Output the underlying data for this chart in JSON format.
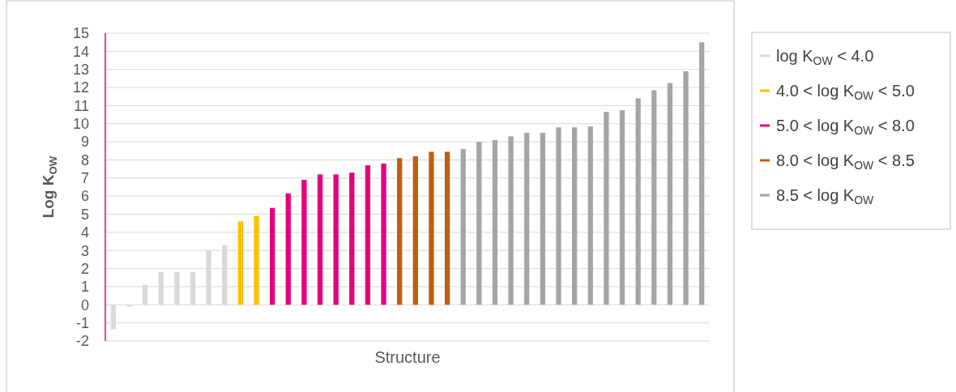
{
  "chart_data": {
    "type": "bar",
    "xlabel": "Structure",
    "ylabel": "Log K$_{OW}$",
    "categories": [
      null,
      null,
      null,
      null,
      null,
      null,
      null,
      null,
      null,
      null,
      null,
      null,
      null,
      null,
      null,
      null,
      null,
      null,
      null,
      null,
      null,
      null,
      null,
      null,
      null,
      null,
      null,
      null,
      null,
      null,
      null,
      null,
      null,
      null,
      null,
      null,
      null,
      null
    ],
    "series": [
      {
        "name": "log K$_{OW}$ < 4.0",
        "color": "#d9d9d9",
        "values": [
          -1.35,
          -0.1,
          1.1,
          1.8,
          1.8,
          1.8,
          3.0,
          3.3,
          null,
          null,
          null,
          null,
          null,
          null,
          null,
          null,
          null,
          null,
          null,
          null,
          null,
          null,
          null,
          null,
          null,
          null,
          null,
          null,
          null,
          null,
          null,
          null,
          null,
          null,
          null,
          null,
          null,
          null
        ]
      },
      {
        "name": "4.0 < log K$_{OW}$ < 5.0",
        "color": "#ffc000",
        "values": [
          null,
          null,
          null,
          null,
          null,
          null,
          null,
          null,
          4.6,
          4.9,
          null,
          null,
          null,
          null,
          null,
          null,
          null,
          null,
          null,
          null,
          null,
          null,
          null,
          null,
          null,
          null,
          null,
          null,
          null,
          null,
          null,
          null,
          null,
          null,
          null,
          null,
          null,
          null
        ]
      },
      {
        "name": "5.0 < log K$_{OW}$ < 8.0",
        "color": "#e6007e",
        "values": [
          null,
          null,
          null,
          null,
          null,
          null,
          null,
          null,
          null,
          null,
          5.35,
          6.15,
          6.9,
          7.2,
          7.2,
          7.3,
          7.7,
          7.8,
          null,
          null,
          null,
          null,
          null,
          null,
          null,
          null,
          null,
          null,
          null,
          null,
          null,
          null,
          null,
          null,
          null,
          null,
          null,
          null
        ]
      },
      {
        "name": "8.0 < log K$_{OW}$ < 8.5",
        "color": "#c55a11",
        "values": [
          null,
          null,
          null,
          null,
          null,
          null,
          null,
          null,
          null,
          null,
          null,
          null,
          null,
          null,
          null,
          null,
          null,
          null,
          8.1,
          8.2,
          8.45,
          8.45,
          null,
          null,
          null,
          null,
          null,
          null,
          null,
          null,
          null,
          null,
          null,
          null,
          null,
          null,
          null,
          null
        ]
      },
      {
        "name": "8.5 < log K$_{OW}$",
        "color": "#a5a5a5",
        "values": [
          null,
          null,
          null,
          null,
          null,
          null,
          null,
          null,
          null,
          null,
          null,
          null,
          null,
          null,
          null,
          null,
          null,
          null,
          null,
          null,
          null,
          null,
          8.6,
          9.0,
          9.1,
          9.3,
          9.5,
          9.5,
          9.8,
          9.8,
          9.85,
          10.65,
          10.75,
          11.4,
          11.85,
          12.25,
          12.9,
          14.5
        ]
      }
    ],
    "ylim": [
      -2,
      15
    ],
    "yticks": [
      -2,
      -1,
      0,
      1,
      2,
      3,
      4,
      5,
      6,
      7,
      8,
      9,
      10,
      11,
      12,
      13,
      14,
      15
    ],
    "grid": "y",
    "legend": "right"
  }
}
